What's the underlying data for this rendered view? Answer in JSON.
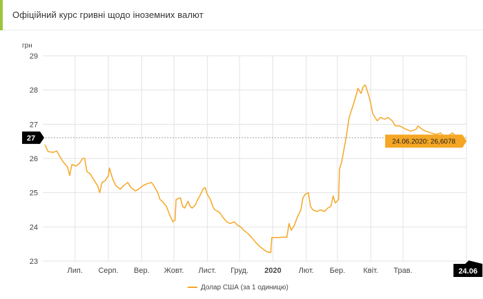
{
  "header": {
    "title": "Офіційний курс гривні щодо іноземних валют"
  },
  "chart_data": {
    "type": "line",
    "unit_label": "грн",
    "ylim": [
      23,
      29
    ],
    "y_ticks": [
      "23",
      "24",
      "25",
      "26",
      "27",
      "28",
      "29"
    ],
    "x_start": "2019-06-01",
    "x_end": "2020-06-29",
    "month_ticks": [
      {
        "label": "Лип.",
        "date": "2019-07-01",
        "bold": false
      },
      {
        "label": "Серп.",
        "date": "2019-08-01",
        "bold": false
      },
      {
        "label": "Вер.",
        "date": "2019-09-01",
        "bold": false
      },
      {
        "label": "Жовт.",
        "date": "2019-10-01",
        "bold": false
      },
      {
        "label": "Лист.",
        "date": "2019-11-01",
        "bold": false
      },
      {
        "label": "Груд.",
        "date": "2019-12-01",
        "bold": false
      },
      {
        "label": "2020",
        "date": "2020-01-01",
        "bold": true
      },
      {
        "label": "Лют.",
        "date": "2020-02-01",
        "bold": false
      },
      {
        "label": "Бер.",
        "date": "2020-03-01",
        "bold": false
      },
      {
        "label": "Квіт.",
        "date": "2020-04-01",
        "bold": false
      },
      {
        "label": "Трав.",
        "date": "2020-05-01",
        "bold": false
      }
    ],
    "crosshair": {
      "x_label": "24.06",
      "y_label": "27",
      "value": 26.6078,
      "date": "2020-06-24"
    },
    "tooltip": "24.06.2020: 26,6078",
    "series": [
      {
        "name": "Долар США (за 1 одиницю)",
        "color": "#f5a623",
        "points": [
          [
            "2019-06-03",
            26.4
          ],
          [
            "2019-06-06",
            26.2
          ],
          [
            "2019-06-11",
            26.18
          ],
          [
            "2019-06-14",
            26.22
          ],
          [
            "2019-06-17",
            26.05
          ],
          [
            "2019-06-20",
            25.9
          ],
          [
            "2019-06-24",
            25.75
          ],
          [
            "2019-06-26",
            25.5
          ],
          [
            "2019-06-28",
            25.82
          ],
          [
            "2019-07-02",
            25.78
          ],
          [
            "2019-07-05",
            25.85
          ],
          [
            "2019-07-08",
            26.0
          ],
          [
            "2019-07-10",
            26.0
          ],
          [
            "2019-07-12",
            25.62
          ],
          [
            "2019-07-15",
            25.55
          ],
          [
            "2019-07-18",
            25.4
          ],
          [
            "2019-07-22",
            25.2
          ],
          [
            "2019-07-24",
            25.0
          ],
          [
            "2019-07-26",
            25.3
          ],
          [
            "2019-07-29",
            25.35
          ],
          [
            "2019-08-01",
            25.5
          ],
          [
            "2019-08-02",
            25.72
          ],
          [
            "2019-08-05",
            25.4
          ],
          [
            "2019-08-08",
            25.2
          ],
          [
            "2019-08-12",
            25.1
          ],
          [
            "2019-08-15",
            25.2
          ],
          [
            "2019-08-19",
            25.3
          ],
          [
            "2019-08-22",
            25.15
          ],
          [
            "2019-08-26",
            25.05
          ],
          [
            "2019-08-29",
            25.1
          ],
          [
            "2019-09-02",
            25.2
          ],
          [
            "2019-09-05",
            25.25
          ],
          [
            "2019-09-10",
            25.3
          ],
          [
            "2019-09-12",
            25.22
          ],
          [
            "2019-09-16",
            25.0
          ],
          [
            "2019-09-18",
            24.8
          ],
          [
            "2019-09-20",
            24.75
          ],
          [
            "2019-09-24",
            24.6
          ],
          [
            "2019-09-27",
            24.35
          ],
          [
            "2019-09-30",
            24.15
          ],
          [
            "2019-10-02",
            24.2
          ],
          [
            "2019-10-03",
            24.8
          ],
          [
            "2019-10-07",
            24.85
          ],
          [
            "2019-10-09",
            24.6
          ],
          [
            "2019-10-11",
            24.55
          ],
          [
            "2019-10-14",
            24.75
          ],
          [
            "2019-10-16",
            24.6
          ],
          [
            "2019-10-18",
            24.55
          ],
          [
            "2019-10-21",
            24.65
          ],
          [
            "2019-10-23",
            24.8
          ],
          [
            "2019-10-25",
            24.9
          ],
          [
            "2019-10-28",
            25.1
          ],
          [
            "2019-10-30",
            25.15
          ],
          [
            "2019-11-01",
            24.95
          ],
          [
            "2019-11-04",
            24.8
          ],
          [
            "2019-11-06",
            24.6
          ],
          [
            "2019-11-08",
            24.5
          ],
          [
            "2019-11-11",
            24.45
          ],
          [
            "2019-11-13",
            24.4
          ],
          [
            "2019-11-15",
            24.3
          ],
          [
            "2019-11-19",
            24.15
          ],
          [
            "2019-11-22",
            24.1
          ],
          [
            "2019-11-26",
            24.15
          ],
          [
            "2019-11-29",
            24.05
          ],
          [
            "2019-12-02",
            24.0
          ],
          [
            "2019-12-05",
            23.9
          ],
          [
            "2019-12-09",
            23.8
          ],
          [
            "2019-12-12",
            23.7
          ],
          [
            "2019-12-16",
            23.55
          ],
          [
            "2019-12-19",
            23.45
          ],
          [
            "2019-12-23",
            23.35
          ],
          [
            "2019-12-26",
            23.28
          ],
          [
            "2019-12-30",
            23.25
          ],
          [
            "2019-12-31",
            23.69
          ],
          [
            "2020-01-06",
            23.69
          ],
          [
            "2020-01-10",
            23.7
          ],
          [
            "2020-01-14",
            23.7
          ],
          [
            "2020-01-16",
            24.1
          ],
          [
            "2020-01-18",
            23.9
          ],
          [
            "2020-01-21",
            24.05
          ],
          [
            "2020-01-24",
            24.3
          ],
          [
            "2020-01-27",
            24.5
          ],
          [
            "2020-01-29",
            24.85
          ],
          [
            "2020-01-31",
            24.95
          ],
          [
            "2020-02-03",
            25.0
          ],
          [
            "2020-02-05",
            24.6
          ],
          [
            "2020-02-07",
            24.5
          ],
          [
            "2020-02-11",
            24.45
          ],
          [
            "2020-02-14",
            24.5
          ],
          [
            "2020-02-18",
            24.45
          ],
          [
            "2020-02-21",
            24.55
          ],
          [
            "2020-02-24",
            24.6
          ],
          [
            "2020-02-26",
            24.9
          ],
          [
            "2020-02-28",
            24.7
          ],
          [
            "2020-03-02",
            24.8
          ],
          [
            "2020-03-03",
            25.7
          ],
          [
            "2020-03-05",
            25.9
          ],
          [
            "2020-03-09",
            26.6
          ],
          [
            "2020-03-12",
            27.2
          ],
          [
            "2020-03-16",
            27.6
          ],
          [
            "2020-03-18",
            27.8
          ],
          [
            "2020-03-20",
            28.05
          ],
          [
            "2020-03-23",
            27.9
          ],
          [
            "2020-03-25",
            28.1
          ],
          [
            "2020-03-27",
            28.15
          ],
          [
            "2020-03-30",
            27.85
          ],
          [
            "2020-04-01",
            27.6
          ],
          [
            "2020-04-03",
            27.3
          ],
          [
            "2020-04-07",
            27.1
          ],
          [
            "2020-04-10",
            27.2
          ],
          [
            "2020-04-14",
            27.15
          ],
          [
            "2020-04-17",
            27.2
          ],
          [
            "2020-04-21",
            27.1
          ],
          [
            "2020-04-24",
            26.95
          ],
          [
            "2020-04-28",
            26.95
          ],
          [
            "2020-05-04",
            26.85
          ],
          [
            "2020-05-08",
            26.8
          ],
          [
            "2020-05-13",
            26.85
          ],
          [
            "2020-05-15",
            26.95
          ],
          [
            "2020-05-19",
            26.85
          ],
          [
            "2020-05-22",
            26.8
          ],
          [
            "2020-05-27",
            26.75
          ],
          [
            "2020-06-01",
            26.7
          ],
          [
            "2020-06-05",
            26.75
          ],
          [
            "2020-06-09",
            26.6
          ],
          [
            "2020-06-12",
            26.65
          ],
          [
            "2020-06-16",
            26.75
          ],
          [
            "2020-06-19",
            26.65
          ],
          [
            "2020-06-24",
            26.6078
          ]
        ]
      }
    ]
  }
}
